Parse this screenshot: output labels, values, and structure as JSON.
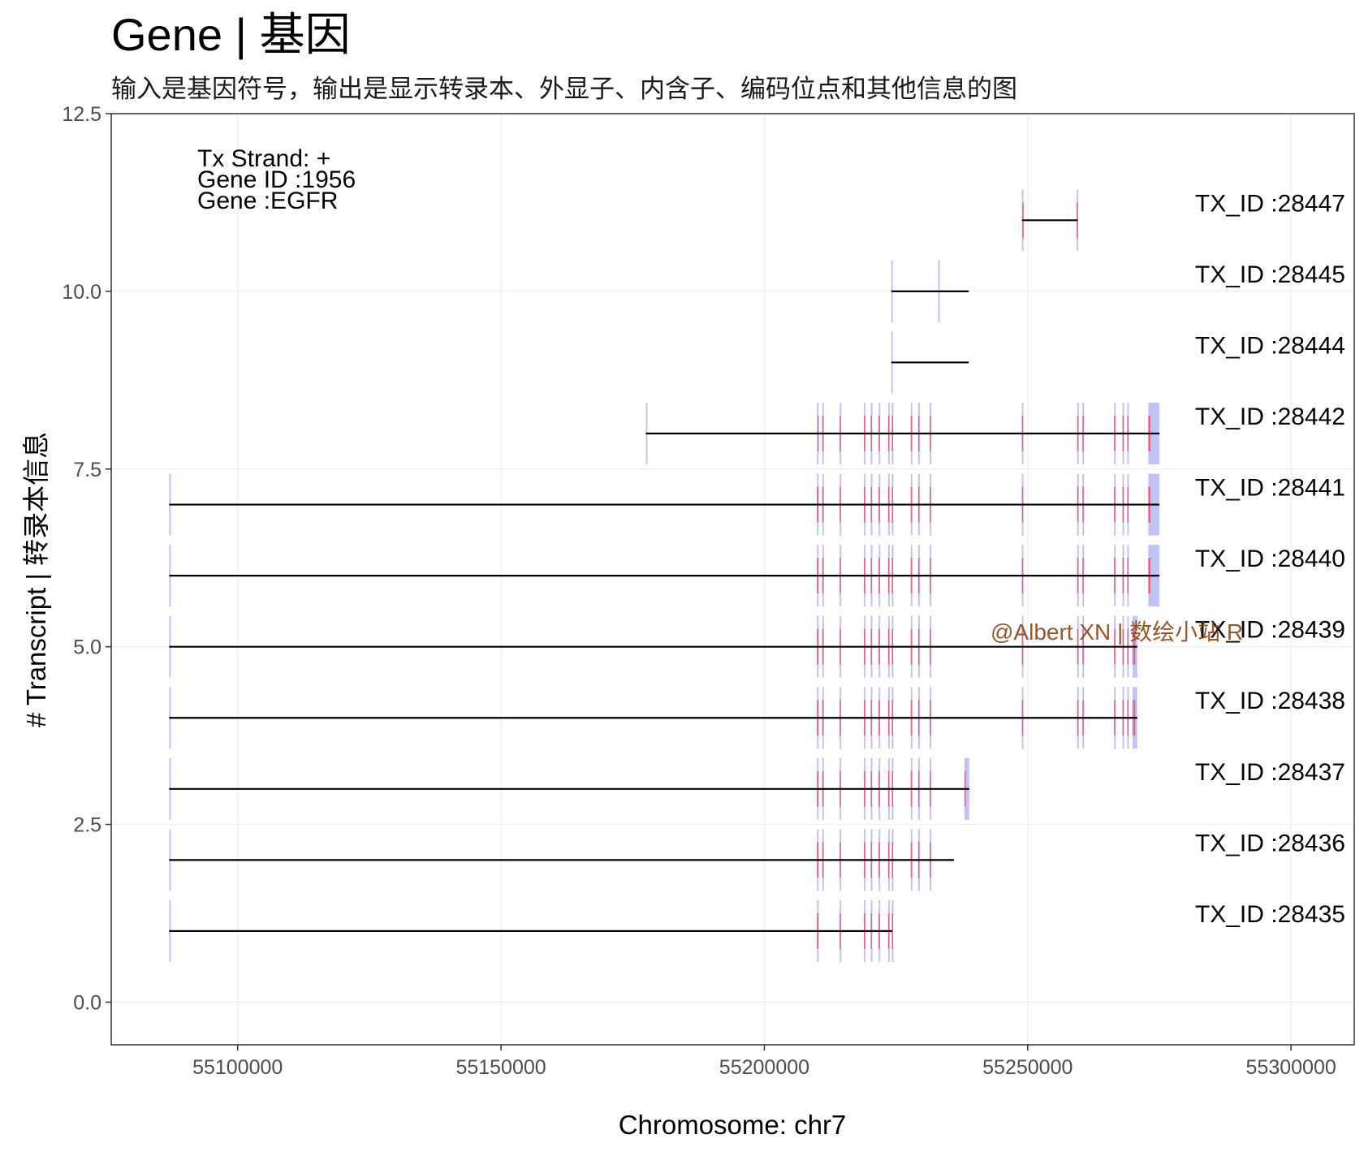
{
  "title": "Gene | 基因",
  "subtitle": "输入是基因符号，输出是显示转录本、外显子、内含子、编码位点和其他信息的图",
  "watermark": "@Albert XN | 数绘小站 R",
  "info": [
    "Tx Strand: +",
    "Gene ID :1956",
    "Gene :EGFR"
  ],
  "colors": {
    "line": "#000000",
    "exon": "#b3b3f5",
    "cds": "#e8557a",
    "axis": "#333333"
  },
  "chart_data": {
    "type": "gene-structure",
    "xlabel": "Chromosome: chr7",
    "ylabel": "# Transcript | 转录本信息",
    "xlim": [
      55076000,
      55312000
    ],
    "ylim": [
      -0.6,
      12.5
    ],
    "xticks": [
      "55100000",
      "55150000",
      "55200000",
      "55250000",
      "55300000"
    ],
    "yticks": [
      "0.0",
      "2.5",
      "5.0",
      "7.5",
      "10.0",
      "12.5"
    ],
    "transcripts": [
      {
        "label": "TX_ID :28435",
        "y": 1,
        "start": 55087000,
        "end": 55224300,
        "exons": [
          [
            55087000,
            55087300
          ],
          [
            55210000,
            55210300
          ],
          [
            55214300,
            55214400
          ],
          [
            55218900,
            55219100
          ],
          [
            55220200,
            55220400
          ],
          [
            55221700,
            55221900
          ],
          [
            55223500,
            55223700
          ],
          [
            55224200,
            55224300
          ]
        ],
        "cds": [
          55087300,
          55224300
        ]
      },
      {
        "label": "TX_ID :28436",
        "y": 2,
        "start": 55087000,
        "end": 55236000,
        "exons": [
          [
            55087000,
            55087300
          ],
          [
            55210000,
            55210300
          ],
          [
            55211000,
            55211200
          ],
          [
            55214300,
            55214400
          ],
          [
            55218900,
            55219100
          ],
          [
            55220200,
            55220400
          ],
          [
            55221700,
            55221900
          ],
          [
            55223500,
            55223700
          ],
          [
            55224200,
            55224300
          ],
          [
            55227800,
            55228000
          ],
          [
            55229200,
            55229300
          ],
          [
            55231400,
            55231500
          ]
        ],
        "cds": [
          55087300,
          55236000
        ]
      },
      {
        "label": "TX_ID :28437",
        "y": 3,
        "start": 55087000,
        "end": 55238900,
        "exons": [
          [
            55087000,
            55087300
          ],
          [
            55210000,
            55210300
          ],
          [
            55211000,
            55211200
          ],
          [
            55214300,
            55214400
          ],
          [
            55218900,
            55219100
          ],
          [
            55220200,
            55220400
          ],
          [
            55221700,
            55221900
          ],
          [
            55223500,
            55223700
          ],
          [
            55224200,
            55224300
          ],
          [
            55227800,
            55228000
          ],
          [
            55229200,
            55229300
          ],
          [
            55231400,
            55231500
          ],
          [
            55238000,
            55238900
          ]
        ],
        "cds": [
          55087300,
          55238200
        ]
      },
      {
        "label": "TX_ID :28438",
        "y": 4,
        "start": 55087000,
        "end": 55270800,
        "exons": [
          [
            55087000,
            55087300
          ],
          [
            55210000,
            55210300
          ],
          [
            55211000,
            55211200
          ],
          [
            55214300,
            55214400
          ],
          [
            55218900,
            55219100
          ],
          [
            55220200,
            55220400
          ],
          [
            55221700,
            55221900
          ],
          [
            55223500,
            55223700
          ],
          [
            55224200,
            55224300
          ],
          [
            55227800,
            55228000
          ],
          [
            55229200,
            55229300
          ],
          [
            55231400,
            55231500
          ],
          [
            55248900,
            55249100
          ],
          [
            55259400,
            55259600
          ],
          [
            55260400,
            55260500
          ],
          [
            55266400,
            55266600
          ],
          [
            55268000,
            55268200
          ],
          [
            55268900,
            55269100
          ],
          [
            55269900,
            55270100
          ],
          [
            55270200,
            55270800
          ]
        ],
        "cds": [
          55087300,
          55270300
        ]
      },
      {
        "label": "TX_ID :28439",
        "y": 5,
        "start": 55087000,
        "end": 55270800,
        "exons": [
          [
            55087000,
            55087300
          ],
          [
            55210000,
            55210300
          ],
          [
            55211000,
            55211200
          ],
          [
            55214300,
            55214400
          ],
          [
            55218900,
            55219100
          ],
          [
            55220200,
            55220400
          ],
          [
            55221700,
            55221900
          ],
          [
            55223500,
            55223700
          ],
          [
            55224200,
            55224300
          ],
          [
            55227800,
            55228000
          ],
          [
            55229200,
            55229300
          ],
          [
            55231400,
            55231500
          ],
          [
            55248900,
            55249100
          ],
          [
            55259400,
            55259600
          ],
          [
            55260400,
            55260500
          ],
          [
            55266400,
            55266600
          ],
          [
            55268000,
            55268200
          ],
          [
            55268900,
            55269100
          ],
          [
            55269900,
            55270100
          ],
          [
            55270200,
            55270800
          ]
        ],
        "cds": [
          55087300,
          55270300
        ]
      },
      {
        "label": "TX_ID :28440",
        "y": 6,
        "start": 55087000,
        "end": 55275000,
        "exons": [
          [
            55087000,
            55087300
          ],
          [
            55210000,
            55210300
          ],
          [
            55211000,
            55211200
          ],
          [
            55214300,
            55214400
          ],
          [
            55218900,
            55219100
          ],
          [
            55220200,
            55220400
          ],
          [
            55221700,
            55221900
          ],
          [
            55223500,
            55223700
          ],
          [
            55224200,
            55224300
          ],
          [
            55227800,
            55228000
          ],
          [
            55229200,
            55229300
          ],
          [
            55231400,
            55231500
          ],
          [
            55248900,
            55249100
          ],
          [
            55259400,
            55259600
          ],
          [
            55260400,
            55260500
          ],
          [
            55266400,
            55266600
          ],
          [
            55268000,
            55268200
          ],
          [
            55268900,
            55269100
          ],
          [
            55272900,
            55275000
          ]
        ],
        "cds": [
          55087300,
          55273300
        ]
      },
      {
        "label": "TX_ID :28441",
        "y": 7,
        "start": 55087000,
        "end": 55275000,
        "exons": [
          [
            55087000,
            55087300
          ],
          [
            55210000,
            55210300
          ],
          [
            55211000,
            55211200
          ],
          [
            55214300,
            55214400
          ],
          [
            55218900,
            55219100
          ],
          [
            55220200,
            55220400
          ],
          [
            55221700,
            55221900
          ],
          [
            55223500,
            55223700
          ],
          [
            55224200,
            55224300
          ],
          [
            55227800,
            55228000
          ],
          [
            55229200,
            55229300
          ],
          [
            55231400,
            55231500
          ],
          [
            55248900,
            55249100
          ],
          [
            55259400,
            55259600
          ],
          [
            55260400,
            55260500
          ],
          [
            55266400,
            55266600
          ],
          [
            55268000,
            55268200
          ],
          [
            55268900,
            55269100
          ],
          [
            55272900,
            55275000
          ]
        ],
        "cds": [
          55087300,
          55273300
        ]
      },
      {
        "label": "TX_ID :28442",
        "y": 8,
        "start": 55177500,
        "end": 55275000,
        "exons": [
          [
            55177500,
            55177700
          ],
          [
            55210000,
            55210300
          ],
          [
            55211000,
            55211200
          ],
          [
            55214300,
            55214400
          ],
          [
            55218900,
            55219100
          ],
          [
            55220200,
            55220400
          ],
          [
            55221700,
            55221900
          ],
          [
            55223500,
            55223700
          ],
          [
            55224200,
            55224300
          ],
          [
            55227800,
            55228000
          ],
          [
            55229200,
            55229300
          ],
          [
            55231400,
            55231500
          ],
          [
            55248900,
            55249100
          ],
          [
            55259400,
            55259600
          ],
          [
            55260400,
            55260500
          ],
          [
            55266400,
            55266600
          ],
          [
            55268000,
            55268200
          ],
          [
            55268900,
            55269100
          ],
          [
            55272900,
            55275000
          ]
        ],
        "cds": [
          55210100,
          55273300
        ]
      },
      {
        "label": "TX_ID :28444",
        "y": 9,
        "start": 55224100,
        "end": 55238800,
        "exons": [
          [
            55224100,
            55224300
          ]
        ],
        "cds": null
      },
      {
        "label": "TX_ID :28445",
        "y": 10,
        "start": 55224100,
        "end": 55238800,
        "exons": [
          [
            55224100,
            55224300
          ],
          [
            55233000,
            55233200
          ]
        ],
        "cds": null
      },
      {
        "label": "TX_ID :28447",
        "y": 11,
        "start": 55248900,
        "end": 55259500,
        "exons": [
          [
            55248900,
            55249100
          ],
          [
            55259300,
            55259500
          ]
        ],
        "cds": [
          55249000,
          55259400
        ]
      }
    ]
  }
}
